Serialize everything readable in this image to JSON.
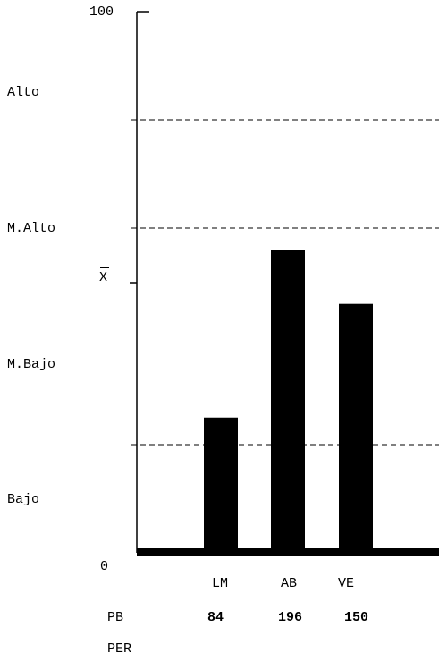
{
  "chart_data": {
    "type": "bar",
    "categories": [
      "LM",
      "AB",
      "VE"
    ],
    "values": [
      25,
      56,
      46
    ],
    "ylim": [
      0,
      100
    ],
    "ytick_top": "100",
    "ytick_bottom": "0",
    "mean_label": "X",
    "mean_value": 60,
    "reference_lines": [
      20,
      60,
      80
    ],
    "bands": [
      "Alto",
      "M.Alto",
      "M.Bajo",
      "Bajo"
    ],
    "bar_color": "#000000",
    "grid": false
  },
  "rows": {
    "pb_label": "PB",
    "pb_values": [
      "84",
      "196",
      "150"
    ],
    "per_label": "PER"
  }
}
